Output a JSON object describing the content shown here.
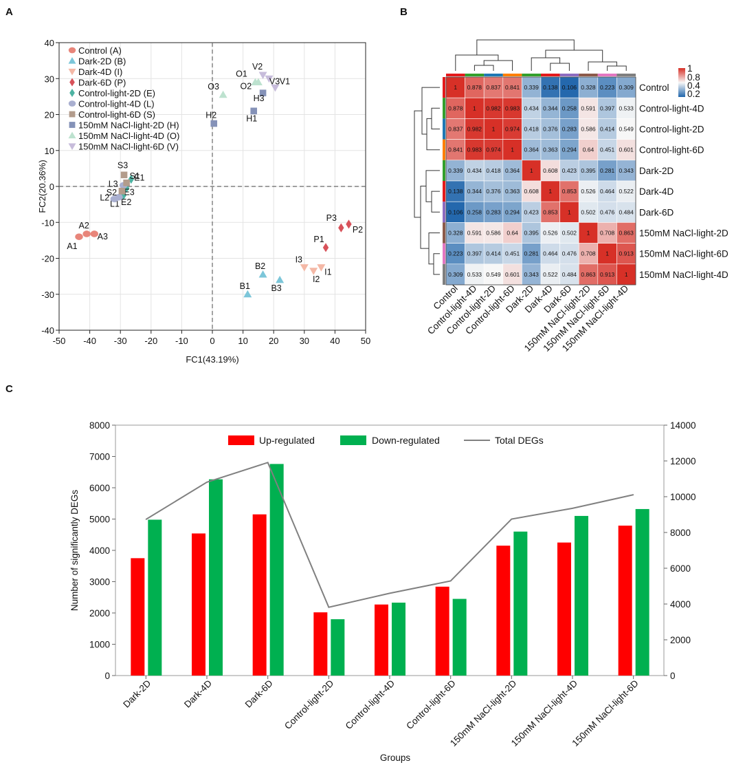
{
  "panels": {
    "A": "A",
    "B": "B",
    "C": "C"
  },
  "chart_data": [
    {
      "type": "scatter",
      "panel": "A",
      "xlabel": "FC1(43.19%)",
      "ylabel": "FC2(20.36%)",
      "xlim": [
        -50,
        50
      ],
      "ylim": [
        -40,
        40
      ],
      "xticks": [
        "-50",
        "-40",
        "-30",
        "-20",
        "-10",
        "0",
        "10",
        "20",
        "30",
        "40",
        "50"
      ],
      "yticks": [
        "40",
        "30",
        "20",
        "10",
        "0",
        "-10",
        "-20",
        "-30",
        "-40"
      ],
      "reference_lines": {
        "x": 0,
        "y": 0
      },
      "legend": [
        {
          "label": "Control (A)",
          "group": "A",
          "marker": "circle",
          "color": "#E8857A"
        },
        {
          "label": "Dark-2D (B)",
          "group": "B",
          "marker": "triangle-up",
          "color": "#7CC6D9"
        },
        {
          "label": "Dark-4D (I)",
          "group": "I",
          "marker": "triangle-down",
          "color": "#F4B8A6"
        },
        {
          "label": "Dark-6D (P)",
          "group": "P",
          "marker": "diamond",
          "color": "#D8525A"
        },
        {
          "label": "Control-light-2D (E)",
          "group": "E",
          "marker": "diamond",
          "color": "#4DB3A2"
        },
        {
          "label": "Control-light-4D (L)",
          "group": "L",
          "marker": "circle",
          "color": "#A9AFD0"
        },
        {
          "label": "Control-light-6D (S)",
          "group": "S",
          "marker": "square",
          "color": "#B39C8C"
        },
        {
          "label": "150mM NaCl-light-2D (H)",
          "group": "H",
          "marker": "square",
          "color": "#8592B8"
        },
        {
          "label": "150mM NaCl-light-4D (O)",
          "group": "O",
          "marker": "triangle-up",
          "color": "#BDE2CF"
        },
        {
          "label": "150mM NaCl-light-6D (V)",
          "group": "V",
          "marker": "triangle-down",
          "color": "#C7BCDB"
        }
      ],
      "points": [
        {
          "label": "A1",
          "group": "A",
          "x": -43.5,
          "y": -14
        },
        {
          "label": "A2",
          "group": "A",
          "x": -41,
          "y": -13.2
        },
        {
          "label": "A3",
          "group": "A",
          "x": -38.5,
          "y": -13.2
        },
        {
          "label": "B1",
          "group": "B",
          "x": 11.5,
          "y": -30
        },
        {
          "label": "B2",
          "group": "B",
          "x": 16.5,
          "y": -24.5
        },
        {
          "label": "B3",
          "group": "B",
          "x": 22,
          "y": -26
        },
        {
          "label": "I1",
          "group": "I",
          "x": 35.5,
          "y": -22.5
        },
        {
          "label": "I2",
          "group": "I",
          "x": 33,
          "y": -23.5
        },
        {
          "label": "I3",
          "group": "I",
          "x": 30,
          "y": -22.5
        },
        {
          "label": "P1",
          "group": "P",
          "x": 37,
          "y": -17
        },
        {
          "label": "P2",
          "group": "P",
          "x": 44.5,
          "y": -10.5
        },
        {
          "label": "P3",
          "group": "P",
          "x": 42,
          "y": -11.5
        },
        {
          "label": "E1",
          "group": "E",
          "x": -26.5,
          "y": 2
        },
        {
          "label": "E2",
          "group": "E",
          "x": -29,
          "y": -2.5
        },
        {
          "label": "E3",
          "group": "E",
          "x": -28,
          "y": -0.5
        },
        {
          "label": "L1",
          "group": "L",
          "x": -30.5,
          "y": -3
        },
        {
          "label": "L2",
          "group": "L",
          "x": -32,
          "y": -3.5
        },
        {
          "label": "L3",
          "group": "L",
          "x": -29,
          "y": 0.3
        },
        {
          "label": "S1",
          "group": "S",
          "x": -28,
          "y": 1
        },
        {
          "label": "S2",
          "group": "S",
          "x": -29.5,
          "y": -1.3
        },
        {
          "label": "S3",
          "group": "S",
          "x": -28.8,
          "y": 3.2
        },
        {
          "label": "H1",
          "group": "H",
          "x": 13.5,
          "y": 21
        },
        {
          "label": "H2",
          "group": "H",
          "x": 0.5,
          "y": 17.5
        },
        {
          "label": "H3",
          "group": "H",
          "x": 16.5,
          "y": 26
        },
        {
          "label": "O1",
          "group": "O",
          "x": 14,
          "y": 29
        },
        {
          "label": "O2",
          "group": "O",
          "x": 15,
          "y": 29
        },
        {
          "label": "O3",
          "group": "O",
          "x": 3.5,
          "y": 25.5
        },
        {
          "label": "V1",
          "group": "V",
          "x": 20.5,
          "y": 27.5
        },
        {
          "label": "V2",
          "group": "V",
          "x": 16.5,
          "y": 31
        },
        {
          "label": "V3",
          "group": "V",
          "x": 18.5,
          "y": 30
        }
      ]
    },
    {
      "type": "heatmap",
      "panel": "B",
      "rows": [
        "Control",
        "Control-light-4D",
        "Control-light-2D",
        "Control-light-6D",
        "Dark-2D",
        "Dark-4D",
        "Dark-6D",
        "150mM NaCl-light-2D",
        "150mM NaCl-light-6D",
        "150mM NaCl-light-4D"
      ],
      "columns": [
        "Control",
        "Control-light-4D",
        "Control-light-2D",
        "Control-light-6D",
        "Dark-2D",
        "Dark-4D",
        "Dark-6D",
        "150mM NaCl-light-2D",
        "150mM NaCl-light-6D",
        "150mM NaCl-light-4D"
      ],
      "values": [
        [
          "1",
          "0.878",
          "0.837",
          "0.841",
          "0.339",
          "0.138",
          "0.106",
          "0.328",
          "0.223",
          "0.309"
        ],
        [
          "0.878",
          "1",
          "0.982",
          "0.983",
          "0.434",
          "0.344",
          "0.258",
          "0.591",
          "0.397",
          "0.533"
        ],
        [
          "0.837",
          "0.982",
          "1",
          "0.974",
          "0.418",
          "0.376",
          "0.283",
          "0.586",
          "0.414",
          "0.549"
        ],
        [
          "0.841",
          "0.983",
          "0.974",
          "1",
          "0.364",
          "0.363",
          "0.294",
          "0.64",
          "0.451",
          "0.601"
        ],
        [
          "0.339",
          "0.434",
          "0.418",
          "0.364",
          "1",
          "0.608",
          "0.423",
          "0.395",
          "0.281",
          "0.343"
        ],
        [
          "0.138",
          "0.344",
          "0.376",
          "0.363",
          "0.608",
          "1",
          "0.853",
          "0.526",
          "0.464",
          "0.522"
        ],
        [
          "0.106",
          "0.258",
          "0.283",
          "0.294",
          "0.423",
          "0.853",
          "1",
          "0.502",
          "0.476",
          "0.484"
        ],
        [
          "0.328",
          "0.591",
          "0.586",
          "0.64",
          "0.395",
          "0.526",
          "0.502",
          "1",
          "0.708",
          "0.863"
        ],
        [
          "0.223",
          "0.397",
          "0.414",
          "0.451",
          "0.281",
          "0.464",
          "0.476",
          "0.708",
          "1",
          "0.913"
        ],
        [
          "0.309",
          "0.533",
          "0.549",
          "0.601",
          "0.343",
          "0.522",
          "0.484",
          "0.863",
          "0.913",
          "1"
        ]
      ],
      "colorbar": {
        "ticks": [
          "1",
          "0.8",
          "0.4",
          "0.2"
        ],
        "low_color": "#2166AC",
        "mid_color": "#F7F7F7",
        "high_color": "#D73027",
        "range": [
          0.1,
          1
        ]
      },
      "group_colors": [
        "#E41A1C",
        "#33A02C",
        "#1F78B4",
        "#FF7F00",
        "#33A02C",
        "#E41A1C",
        "#8E6CC0",
        "#8C5A4A",
        "#E377C2",
        "#7F7F7F"
      ]
    },
    {
      "type": "bar",
      "panel": "C",
      "categories": [
        "Dark-2D",
        "Dark-4D",
        "Dark-6D",
        "Control-light-2D",
        "Control-light-4D",
        "Control-light-6D",
        "150mM NaCl-light-2D",
        "150mM NaCl-light-4D",
        "150mM NaCl-light-6D"
      ],
      "series": [
        {
          "name": "Up-regulated",
          "color": "#FF0000",
          "values": [
            3750,
            4540,
            5150,
            2020,
            2270,
            2840,
            4150,
            4250,
            4790
          ]
        },
        {
          "name": "Down-regulated",
          "color": "#00B050",
          "values": [
            4980,
            6270,
            6760,
            1800,
            2330,
            2450,
            4600,
            5100,
            5320
          ]
        },
        {
          "name": "Total DEGs",
          "color": "#808080",
          "type": "line",
          "axis": "right",
          "values": [
            8730,
            10810,
            11910,
            3820,
            4600,
            5290,
            8750,
            9350,
            10110
          ]
        }
      ],
      "xlabel": "Groups",
      "ylabel": "Number of significantly DEGs",
      "ylim": [
        0,
        8000
      ],
      "y2lim": [
        0,
        14000
      ],
      "yticks": [
        "0",
        "1000",
        "2000",
        "3000",
        "4000",
        "5000",
        "6000",
        "7000",
        "8000"
      ],
      "y2ticks": [
        "0",
        "2000",
        "4000",
        "6000",
        "8000",
        "10000",
        "12000",
        "14000"
      ]
    }
  ]
}
